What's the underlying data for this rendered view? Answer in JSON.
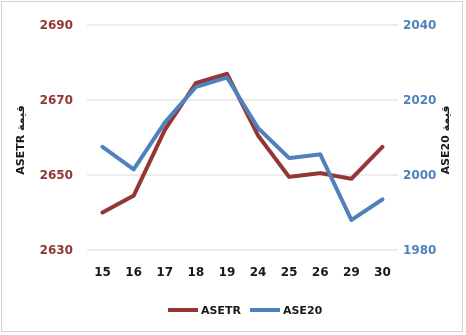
{
  "chart_data": {
    "type": "line",
    "categories": [
      "15",
      "16",
      "17",
      "18",
      "19",
      "24",
      "25",
      "26",
      "29",
      "30"
    ],
    "series": [
      {
        "name": "ASETR",
        "axis": "left",
        "color": "#943634",
        "values": [
          2640,
          2644.5,
          2662,
          2674.5,
          2677,
          2660.5,
          2649.5,
          2650.5,
          2649,
          2657.5
        ]
      },
      {
        "name": "ASE20",
        "axis": "right",
        "color": "#4f81bd",
        "values": [
          2007.5,
          2001.5,
          2014,
          2023.5,
          2026,
          2012.5,
          2004.5,
          2005.5,
          1988,
          1993.5
        ]
      }
    ],
    "ylabel_left": "قيمة ASETR",
    "ylabel_right": "قيمة ASE20",
    "ylim_left": [
      2630,
      2690
    ],
    "yticks_left": [
      "2690",
      "2670",
      "2650",
      "2630"
    ],
    "ylim_right": [
      1980,
      2040
    ],
    "yticks_right": [
      "2040",
      "2020",
      "2000",
      "1980"
    ],
    "grid": "horizontal",
    "legend": "bottom"
  }
}
